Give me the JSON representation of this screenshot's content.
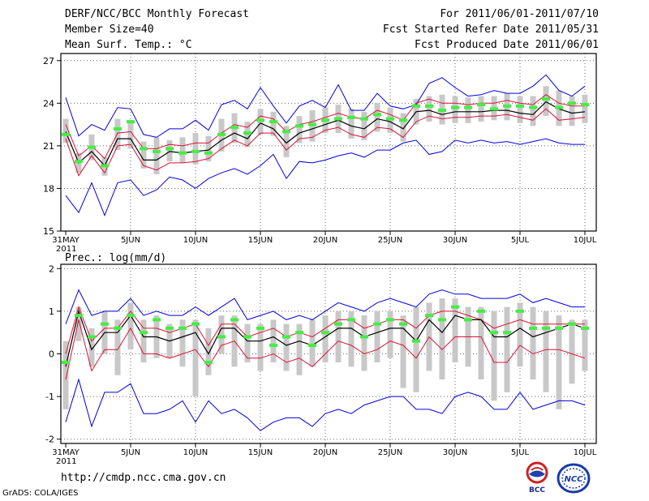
{
  "header": {
    "title": "DERF/NCC/BCC Monthly Forecast",
    "member_size": "Member Size=40",
    "variable": "Mean Surf. Temp.: °C",
    "period": "For 2011/06/01-2011/07/10",
    "fcst_started": "Fcst Started Refer Date 2011/05/31",
    "fcst_produced": "Fcst Produced Date 2011/06/01"
  },
  "footer": {
    "url": "http://cmdp.ncc.cma.gov.cn",
    "credit": "GrADS: COLA/IGES",
    "logo_bcc": "BCC",
    "logo_ncc": "NCC"
  },
  "colors": {
    "max_min": "#0000dd",
    "spread": "#dd1133",
    "mean": "#000000",
    "observed": "#44ee44",
    "range_bar": "#c8c8c8"
  },
  "chart_data": [
    {
      "type": "line",
      "title": "Mean Surf. Temp.: °C",
      "ylim": [
        15,
        27.5
      ],
      "yticks": [
        15,
        18,
        21,
        24,
        27
      ],
      "x": [
        0,
        1,
        2,
        3,
        4,
        5,
        6,
        7,
        8,
        9,
        10,
        11,
        12,
        13,
        14,
        15,
        16,
        17,
        18,
        19,
        20,
        21,
        22,
        23,
        24,
        25,
        26,
        27,
        28,
        29,
        30,
        31,
        32,
        33,
        34,
        35,
        36,
        37,
        38,
        39,
        40
      ],
      "xticks": [
        {
          "x": 0,
          "label": "31MAY",
          "sub": "2011"
        },
        {
          "x": 5,
          "label": "5JUN"
        },
        {
          "x": 10,
          "label": "10JUN"
        },
        {
          "x": 15,
          "label": "15JUN"
        },
        {
          "x": 20,
          "label": "20JUN"
        },
        {
          "x": 25,
          "label": "25JUN"
        },
        {
          "x": 30,
          "label": "30JUN"
        },
        {
          "x": 35,
          "label": "5JUL"
        },
        {
          "x": 40,
          "label": "10JUL"
        }
      ],
      "series": [
        {
          "name": "max",
          "values": [
            24.4,
            21.7,
            22.5,
            22.1,
            23.7,
            23.6,
            21.8,
            21.6,
            22.2,
            22.2,
            22.8,
            22.1,
            23.9,
            24.2,
            23.6,
            25.1,
            23.8,
            22.6,
            23.8,
            24.2,
            23.7,
            25.3,
            23.5,
            23.5,
            24.7,
            23.8,
            23.6,
            23.9,
            25.4,
            25.8,
            25.1,
            24.5,
            24.6,
            24.9,
            24.7,
            24.7,
            25.2,
            26.0,
            24.9,
            24.5,
            25.2
          ]
        },
        {
          "name": "upper",
          "values": [
            22.5,
            20.3,
            21.0,
            20.1,
            21.9,
            22.0,
            20.8,
            20.8,
            21.1,
            21.0,
            21.2,
            21.2,
            21.9,
            22.5,
            22.3,
            23.1,
            22.9,
            22.0,
            22.5,
            22.7,
            23.0,
            23.3,
            23.0,
            22.9,
            23.5,
            23.2,
            22.8,
            24.0,
            24.3,
            24.0,
            24.0,
            23.9,
            24.0,
            24.0,
            24.2,
            24.0,
            23.9,
            24.6,
            24.0,
            23.8,
            23.8
          ]
        },
        {
          "name": "mean",
          "values": [
            22.0,
            19.8,
            20.6,
            19.6,
            21.5,
            21.5,
            20.0,
            20.0,
            20.6,
            20.5,
            20.6,
            20.7,
            21.4,
            21.9,
            21.5,
            22.6,
            22.2,
            21.2,
            21.9,
            22.2,
            22.5,
            22.8,
            22.4,
            22.2,
            22.9,
            22.7,
            22.2,
            23.4,
            23.5,
            23.2,
            23.4,
            23.4,
            23.4,
            23.5,
            23.5,
            23.3,
            23.2,
            24.1,
            23.6,
            23.3,
            23.4
          ]
        },
        {
          "name": "lower",
          "values": [
            21.5,
            18.9,
            20.3,
            19.1,
            21.0,
            21.1,
            19.6,
            19.3,
            19.8,
            19.8,
            19.9,
            20.1,
            20.8,
            21.4,
            21.0,
            21.9,
            21.9,
            20.7,
            21.5,
            21.6,
            22.1,
            22.3,
            21.8,
            21.6,
            22.3,
            22.2,
            21.6,
            22.7,
            23.1,
            22.9,
            23.0,
            23.0,
            23.1,
            23.1,
            23.2,
            23.0,
            22.8,
            23.6,
            22.8,
            22.9,
            23.0
          ]
        },
        {
          "name": "min",
          "values": [
            17.5,
            16.3,
            18.4,
            16.1,
            18.4,
            18.6,
            17.5,
            17.9,
            18.8,
            18.6,
            18.0,
            18.7,
            19.1,
            19.4,
            19.0,
            19.6,
            20.4,
            18.7,
            19.9,
            19.8,
            20.0,
            20.3,
            20.5,
            20.2,
            20.7,
            20.7,
            21.2,
            21.4,
            20.4,
            20.6,
            21.4,
            21.2,
            21.4,
            21.2,
            21.3,
            21.1,
            21.3,
            21.5,
            21.2,
            21.1,
            21.1
          ]
        }
      ],
      "range_bars": [
        [
          21.2,
          22.9
        ],
        [
          19.1,
          20.5
        ],
        [
          20.0,
          21.8
        ],
        [
          18.9,
          20.2
        ],
        [
          20.7,
          22.9
        ],
        [
          20.8,
          22.6
        ],
        [
          19.4,
          21.3
        ],
        [
          19.0,
          21.6
        ],
        [
          19.9,
          21.4
        ],
        [
          19.8,
          21.6
        ],
        [
          19.7,
          21.9
        ],
        [
          19.9,
          21.7
        ],
        [
          20.6,
          22.9
        ],
        [
          21.2,
          23.3
        ],
        [
          20.9,
          22.7
        ],
        [
          21.8,
          23.6
        ],
        [
          21.7,
          23.4
        ],
        [
          20.2,
          22.4
        ],
        [
          21.2,
          23.1
        ],
        [
          21.3,
          23.5
        ],
        [
          21.9,
          23.7
        ],
        [
          21.9,
          23.9
        ],
        [
          21.5,
          23.6
        ],
        [
          21.4,
          23.4
        ],
        [
          22.0,
          24.0
        ],
        [
          21.9,
          23.7
        ],
        [
          21.3,
          23.3
        ],
        [
          22.5,
          24.3
        ],
        [
          22.7,
          24.5
        ],
        [
          22.5,
          24.6
        ],
        [
          22.6,
          24.5
        ],
        [
          22.6,
          24.4
        ],
        [
          22.7,
          24.5
        ],
        [
          22.8,
          24.5
        ],
        [
          22.8,
          24.7
        ],
        [
          22.6,
          24.5
        ],
        [
          22.4,
          24.5
        ],
        [
          23.1,
          25.2
        ],
        [
          22.4,
          24.9
        ],
        [
          22.4,
          24.5
        ],
        [
          22.6,
          24.6
        ]
      ],
      "observed": [
        21.8,
        19.9,
        20.9,
        19.6,
        22.2,
        22.7,
        20.8,
        20.6,
        20.8,
        20.5,
        20.6,
        20.5,
        21.8,
        22.3,
        21.9,
        22.8,
        22.7,
        22.0,
        22.4,
        22.5,
        22.8,
        22.9,
        23.0,
        22.9,
        23.2,
        22.9,
        22.8,
        23.8,
        23.8,
        23.5,
        23.7,
        23.7,
        23.9,
        23.6,
        23.8,
        23.8,
        23.7,
        24.3,
        23.7,
        24.0,
        23.9
      ]
    },
    {
      "type": "line",
      "title": "Prec.: log(mm/d)",
      "ylim": [
        -2.1,
        2.1
      ],
      "yticks": [
        -2,
        -1,
        0,
        1,
        2
      ],
      "x": [
        0,
        1,
        2,
        3,
        4,
        5,
        6,
        7,
        8,
        9,
        10,
        11,
        12,
        13,
        14,
        15,
        16,
        17,
        18,
        19,
        20,
        21,
        22,
        23,
        24,
        25,
        26,
        27,
        28,
        29,
        30,
        31,
        32,
        33,
        34,
        35,
        36,
        37,
        38,
        39,
        40
      ],
      "xticks": [
        {
          "x": 0,
          "label": "31MAY",
          "sub": "2011"
        },
        {
          "x": 5,
          "label": "5JUN"
        },
        {
          "x": 10,
          "label": "10JUN"
        },
        {
          "x": 15,
          "label": "15JUN"
        },
        {
          "x": 20,
          "label": "20JUN"
        },
        {
          "x": 25,
          "label": "25JUN"
        },
        {
          "x": 30,
          "label": "30JUN"
        },
        {
          "x": 35,
          "label": "5JUL"
        },
        {
          "x": 40,
          "label": "10JUL"
        }
      ],
      "series": [
        {
          "name": "max",
          "values": [
            0.7,
            1.5,
            0.9,
            1.0,
            1.0,
            1.3,
            0.9,
            1.0,
            0.9,
            0.9,
            1.1,
            0.9,
            1.1,
            1.3,
            0.8,
            0.9,
            1.0,
            0.8,
            0.9,
            0.8,
            1.0,
            1.2,
            1.1,
            1.0,
            1.2,
            1.3,
            1.2,
            1.1,
            1.4,
            1.5,
            1.4,
            1.4,
            1.3,
            1.3,
            1.3,
            1.4,
            1.2,
            1.3,
            1.2,
            1.1,
            1.1
          ]
        },
        {
          "name": "upper",
          "values": [
            0.0,
            1.1,
            0.3,
            0.6,
            0.6,
            1.0,
            0.6,
            0.6,
            0.5,
            0.6,
            0.7,
            0.2,
            0.7,
            0.7,
            0.4,
            0.5,
            0.6,
            0.4,
            0.5,
            0.4,
            0.6,
            0.8,
            0.8,
            0.6,
            0.7,
            0.8,
            0.8,
            0.6,
            0.9,
            1.0,
            1.0,
            0.9,
            0.8,
            0.6,
            0.7,
            0.8,
            0.7,
            0.7,
            0.7,
            0.7,
            0.7
          ]
        },
        {
          "name": "mean",
          "values": [
            -0.3,
            1.0,
            0.1,
            0.5,
            0.5,
            0.9,
            0.4,
            0.4,
            0.3,
            0.4,
            0.5,
            0.0,
            0.6,
            0.6,
            0.3,
            0.3,
            0.4,
            0.2,
            0.3,
            0.2,
            0.4,
            0.6,
            0.6,
            0.4,
            0.5,
            0.6,
            0.6,
            0.3,
            0.8,
            0.5,
            0.9,
            0.8,
            0.8,
            0.4,
            0.4,
            0.6,
            0.4,
            0.5,
            0.6,
            0.7,
            0.6
          ]
        },
        {
          "name": "lower",
          "values": [
            -0.6,
            0.8,
            -0.4,
            0.1,
            0.1,
            0.6,
            0.0,
            0.0,
            -0.1,
            0.0,
            0.1,
            -0.3,
            0.2,
            0.3,
            -0.1,
            -0.1,
            0.0,
            -0.2,
            -0.1,
            -0.3,
            0.0,
            0.3,
            0.2,
            0.0,
            0.1,
            0.3,
            0.2,
            -0.1,
            0.4,
            0.1,
            0.4,
            0.4,
            0.4,
            -0.2,
            -0.2,
            0.2,
            0.0,
            0.1,
            0.1,
            0.0,
            -0.1
          ]
        },
        {
          "name": "min",
          "values": [
            -1.6,
            -0.6,
            -1.7,
            -0.9,
            -0.9,
            -0.7,
            -1.4,
            -1.4,
            -1.3,
            -1.1,
            -1.6,
            -1.1,
            -1.4,
            -1.3,
            -1.5,
            -1.8,
            -1.6,
            -1.5,
            -1.5,
            -1.7,
            -1.4,
            -1.3,
            -1.4,
            -1.2,
            -1.1,
            -1.0,
            -1.0,
            -1.3,
            -1.3,
            -1.4,
            -1.0,
            -0.9,
            -1.0,
            -1.3,
            -1.3,
            -0.9,
            -1.3,
            -1.2,
            -1.1,
            -1.1,
            -1.2
          ]
        }
      ],
      "range_bars": [
        [
          -1.3,
          0.3
        ],
        [
          0.3,
          1.1
        ],
        [
          -0.3,
          0.6
        ],
        [
          0.0,
          1.0
        ],
        [
          -0.5,
          0.8
        ],
        [
          0.1,
          1.2
        ],
        [
          -0.2,
          0.8
        ],
        [
          -0.1,
          0.9
        ],
        [
          -0.1,
          0.7
        ],
        [
          -0.3,
          0.8
        ],
        [
          -1.0,
          0.8
        ],
        [
          -0.5,
          0.6
        ],
        [
          0.0,
          0.9
        ],
        [
          -0.3,
          0.9
        ],
        [
          -0.2,
          0.7
        ],
        [
          -0.4,
          0.7
        ],
        [
          -0.2,
          0.8
        ],
        [
          -0.4,
          0.7
        ],
        [
          -0.5,
          0.7
        ],
        [
          -0.3,
          0.8
        ],
        [
          -0.2,
          0.9
        ],
        [
          -0.2,
          1.0
        ],
        [
          -0.3,
          1.0
        ],
        [
          -0.4,
          0.9
        ],
        [
          -0.2,
          1.0
        ],
        [
          -0.1,
          1.0
        ],
        [
          -0.8,
          0.9
        ],
        [
          -0.9,
          1.1
        ],
        [
          -0.4,
          1.2
        ],
        [
          -0.6,
          1.3
        ],
        [
          -0.2,
          1.3
        ],
        [
          -0.3,
          1.1
        ],
        [
          -0.6,
          1.1
        ],
        [
          -1.1,
          1.0
        ],
        [
          -0.9,
          1.1
        ],
        [
          -0.3,
          1.2
        ],
        [
          -0.6,
          1.1
        ],
        [
          -0.9,
          1.0
        ],
        [
          -1.3,
          0.9
        ],
        [
          -0.7,
          0.8
        ],
        [
          -0.4,
          0.8
        ]
      ],
      "observed": [
        -0.2,
        0.9,
        0.4,
        0.7,
        0.6,
        0.9,
        0.5,
        0.8,
        0.6,
        0.6,
        0.7,
        -0.2,
        0.4,
        0.8,
        0.4,
        0.6,
        0.2,
        0.4,
        0.5,
        0.2,
        0.5,
        0.7,
        0.8,
        0.4,
        0.7,
        0.8,
        0.7,
        0.3,
        0.9,
        0.8,
        1.1,
        0.8,
        1.0,
        0.5,
        0.5,
        1.0,
        0.6,
        0.6,
        0.6,
        0.7,
        0.6
      ]
    }
  ]
}
